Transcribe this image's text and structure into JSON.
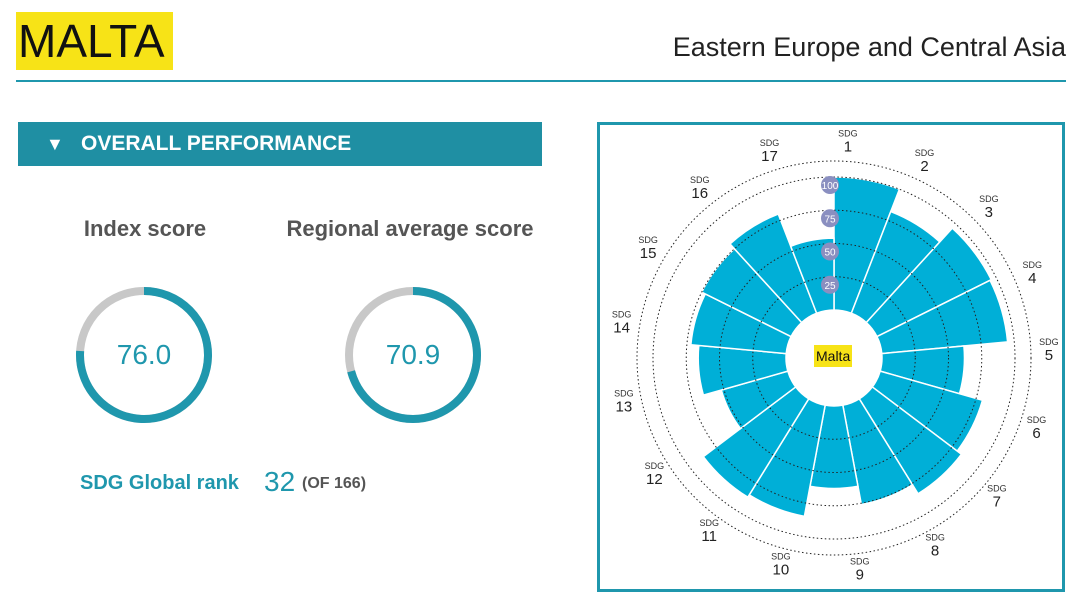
{
  "header": {
    "country": "MALTA",
    "region": "Eastern Europe and Central Asia"
  },
  "performance": {
    "section_title": "OVERALL PERFORMANCE",
    "index_label": "Index score",
    "index_score": "76.0",
    "index_fraction": 0.76,
    "regional_label": "Regional average score",
    "regional_score": "70.9",
    "regional_fraction": 0.709,
    "rank_label": "SDG Global rank",
    "rank_value": "32",
    "rank_of": "(OF 166)"
  },
  "colors": {
    "accent": "#1f97ad",
    "header_bar": "#1f8fa3",
    "highlight": "#f7e317",
    "bar_fill": "#00afd7",
    "ring_track": "#c8c8c8",
    "scale_badge": "#8a8fc0"
  },
  "chart_data": {
    "type": "radial-bar",
    "center_label": "Malta",
    "sdg_prefix": "SDG",
    "categories": [
      "1",
      "2",
      "3",
      "4",
      "5",
      "6",
      "7",
      "8",
      "9",
      "10",
      "11",
      "12",
      "13",
      "14",
      "15",
      "16",
      "17"
    ],
    "values": [
      100,
      82,
      96,
      95,
      62,
      80,
      84,
      76,
      62,
      85,
      87,
      52,
      66,
      72,
      75,
      80,
      54
    ],
    "ticks": [
      "25",
      "50",
      "75",
      "100"
    ],
    "tick_values": [
      25,
      50,
      75,
      100
    ],
    "ylim": [
      0,
      100
    ]
  }
}
